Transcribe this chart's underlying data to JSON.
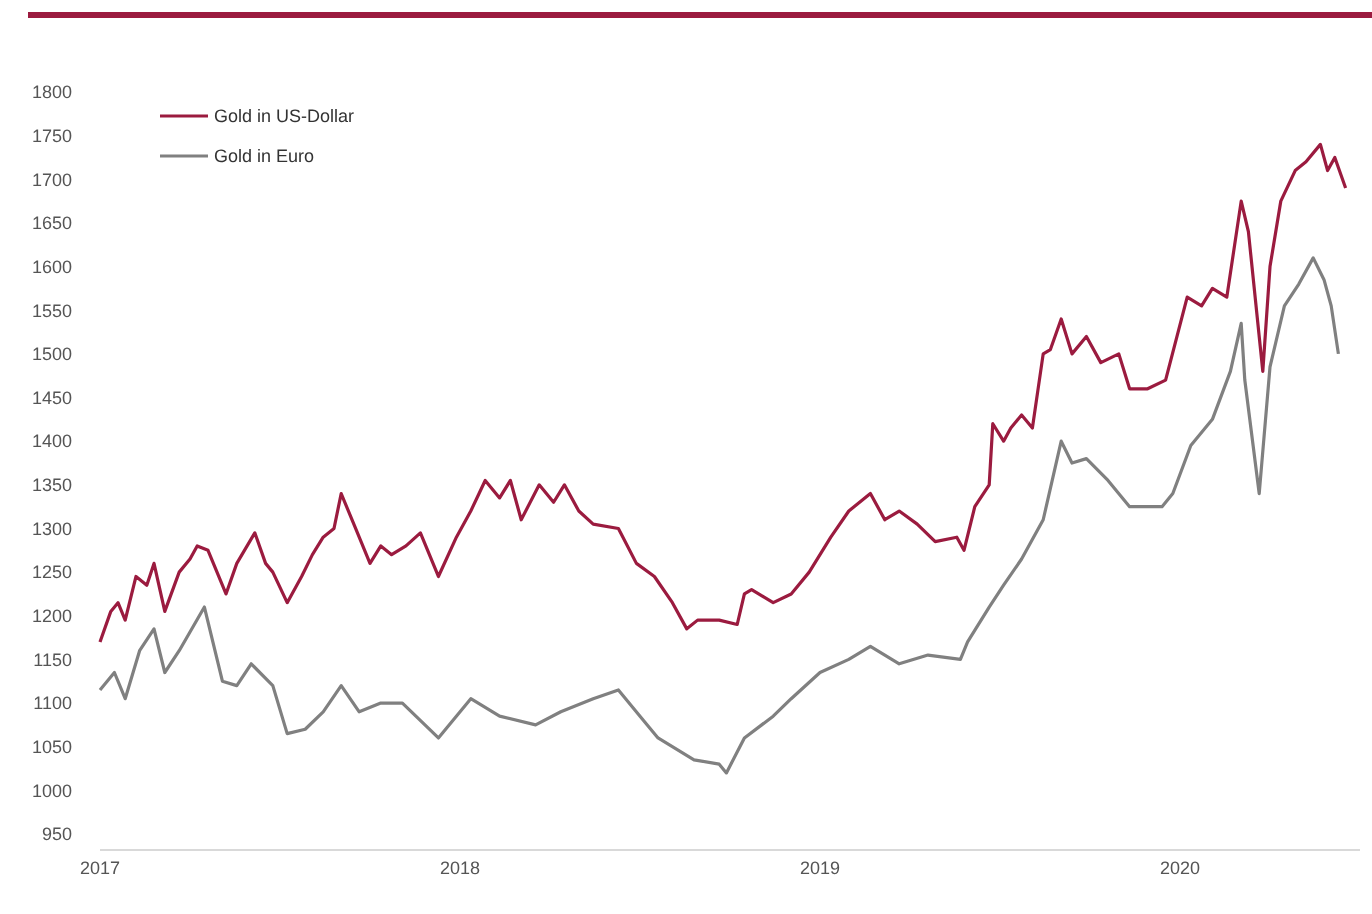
{
  "chart_data": {
    "type": "line",
    "xlim": [
      2017,
      2020.5
    ],
    "xticks": [
      {
        "value": 2017,
        "label": "2017"
      },
      {
        "value": 2018,
        "label": "2018"
      },
      {
        "value": 2019,
        "label": "2019"
      },
      {
        "value": 2020,
        "label": "2020"
      }
    ],
    "ylim": [
      950,
      1800
    ],
    "yticks": [
      950,
      1000,
      1050,
      1100,
      1150,
      1200,
      1250,
      1300,
      1350,
      1400,
      1450,
      1500,
      1550,
      1600,
      1650,
      1700,
      1750,
      1800
    ],
    "grid": false,
    "legend": "top left",
    "marker": "none",
    "line_style": "solid",
    "series": [
      {
        "name": "Gold in US-Dollar",
        "color": "#9b1b3f",
        "x": [
          2017.0,
          2017.03,
          2017.05,
          2017.07,
          2017.1,
          2017.13,
          2017.15,
          2017.18,
          2017.22,
          2017.25,
          2017.27,
          2017.3,
          2017.35,
          2017.38,
          2017.43,
          2017.46,
          2017.48,
          2017.52,
          2017.56,
          2017.59,
          2017.62,
          2017.65,
          2017.67,
          2017.71,
          2017.75,
          2017.78,
          2017.81,
          2017.85,
          2017.89,
          2017.94,
          2017.99,
          2018.03,
          2018.07,
          2018.11,
          2018.14,
          2018.17,
          2018.22,
          2018.26,
          2018.29,
          2018.33,
          2018.37,
          2018.44,
          2018.49,
          2018.54,
          2018.59,
          2018.63,
          2018.66,
          2018.72,
          2018.77,
          2018.79,
          2018.81,
          2018.87,
          2018.92,
          2018.97,
          2019.03,
          2019.08,
          2019.14,
          2019.18,
          2019.22,
          2019.27,
          2019.32,
          2019.38,
          2019.4,
          2019.43,
          2019.47,
          2019.48,
          2019.51,
          2019.53,
          2019.56,
          2019.59,
          2019.62,
          2019.64,
          2019.67,
          2019.7,
          2019.74,
          2019.78,
          2019.83,
          2019.86,
          2019.91,
          2019.96,
          2020.02,
          2020.06,
          2020.09,
          2020.13,
          2020.17,
          2020.19,
          2020.23,
          2020.25,
          2020.28,
          2020.32,
          2020.35,
          2020.39,
          2020.41,
          2020.43,
          2020.46
        ],
        "values": [
          1170,
          1205,
          1215,
          1195,
          1245,
          1235,
          1260,
          1205,
          1250,
          1265,
          1280,
          1275,
          1225,
          1260,
          1295,
          1260,
          1250,
          1215,
          1245,
          1270,
          1290,
          1300,
          1340,
          1300,
          1260,
          1280,
          1270,
          1280,
          1295,
          1245,
          1290,
          1320,
          1355,
          1335,
          1355,
          1310,
          1350,
          1330,
          1350,
          1320,
          1305,
          1300,
          1260,
          1245,
          1215,
          1185,
          1195,
          1195,
          1190,
          1225,
          1230,
          1215,
          1225,
          1250,
          1290,
          1320,
          1340,
          1310,
          1320,
          1305,
          1285,
          1290,
          1275,
          1325,
          1350,
          1420,
          1400,
          1415,
          1430,
          1415,
          1500,
          1505,
          1540,
          1500,
          1520,
          1490,
          1500,
          1460,
          1460,
          1470,
          1565,
          1555,
          1575,
          1565,
          1675,
          1640,
          1480,
          1600,
          1675,
          1710,
          1720,
          1740,
          1710,
          1725,
          1690
        ]
      },
      {
        "name": "Gold in Euro",
        "color": "#808080",
        "x": [
          2017.0,
          2017.04,
          2017.07,
          2017.11,
          2017.15,
          2017.18,
          2017.22,
          2017.29,
          2017.34,
          2017.38,
          2017.42,
          2017.48,
          2017.52,
          2017.57,
          2017.62,
          2017.67,
          2017.72,
          2017.78,
          2017.84,
          2017.94,
          2018.03,
          2018.11,
          2018.21,
          2018.28,
          2018.37,
          2018.44,
          2018.5,
          2018.55,
          2018.65,
          2018.72,
          2018.74,
          2018.79,
          2018.87,
          2018.92,
          2019.0,
          2019.08,
          2019.14,
          2019.22,
          2019.3,
          2019.39,
          2019.41,
          2019.47,
          2019.51,
          2019.56,
          2019.62,
          2019.67,
          2019.7,
          2019.74,
          2019.8,
          2019.86,
          2019.95,
          2019.98,
          2020.03,
          2020.09,
          2020.14,
          2020.17,
          2020.18,
          2020.22,
          2020.25,
          2020.29,
          2020.33,
          2020.37,
          2020.4,
          2020.42,
          2020.44
        ],
        "values": [
          1115,
          1135,
          1105,
          1160,
          1185,
          1135,
          1160,
          1210,
          1125,
          1120,
          1145,
          1120,
          1065,
          1070,
          1090,
          1120,
          1090,
          1100,
          1100,
          1060,
          1105,
          1085,
          1075,
          1090,
          1105,
          1115,
          1085,
          1060,
          1035,
          1030,
          1020,
          1060,
          1085,
          1105,
          1135,
          1150,
          1165,
          1145,
          1155,
          1150,
          1170,
          1210,
          1235,
          1265,
          1310,
          1400,
          1375,
          1380,
          1355,
          1325,
          1325,
          1340,
          1395,
          1425,
          1480,
          1535,
          1470,
          1340,
          1485,
          1555,
          1580,
          1610,
          1585,
          1555,
          1500
        ]
      }
    ]
  }
}
